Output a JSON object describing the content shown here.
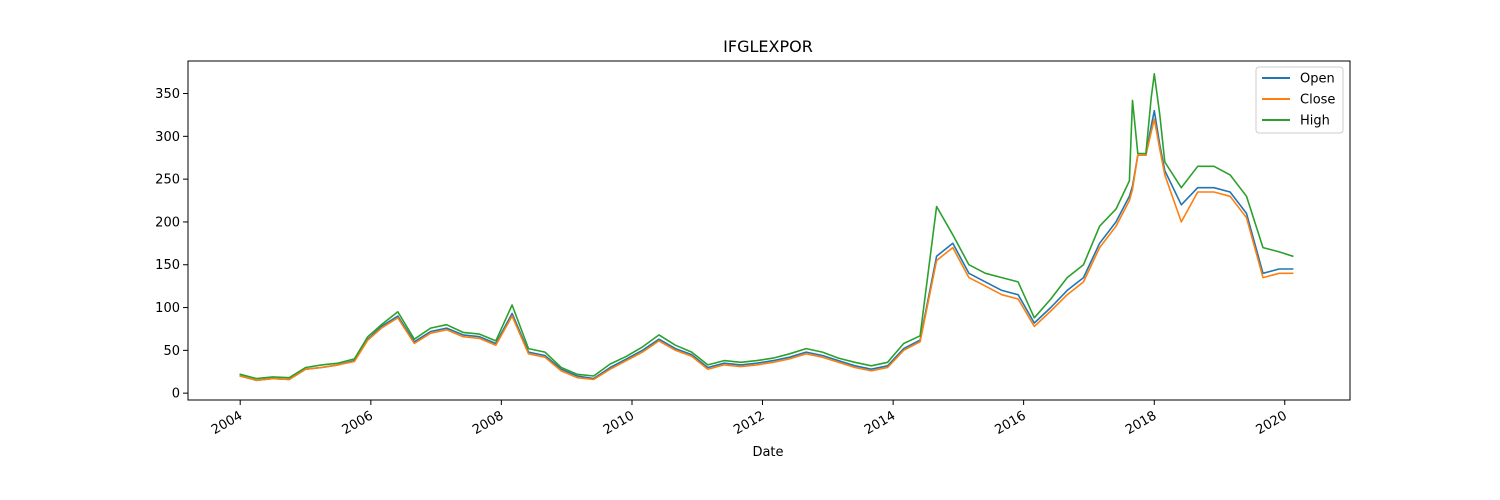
{
  "chart_data": {
    "type": "line",
    "title": "IFGLEXPOR",
    "xlabel": "Date",
    "ylabel": "",
    "x_ticks": [
      "2004",
      "2006",
      "2008",
      "2010",
      "2012",
      "2014",
      "2016",
      "2018",
      "2020"
    ],
    "y_ticks": [
      0,
      50,
      100,
      150,
      200,
      250,
      300,
      350
    ],
    "xlim": [
      "2003-03-15",
      "2020-12-31"
    ],
    "ylim": [
      -8,
      388
    ],
    "grid": false,
    "legend_position": "top-right",
    "x": [
      "2004-01-01",
      "2004-04-01",
      "2004-07-01",
      "2004-10-01",
      "2005-01-01",
      "2005-04-01",
      "2005-07-01",
      "2005-10-01",
      "2005-12-15",
      "2006-03-01",
      "2006-06-01",
      "2006-09-01",
      "2006-12-01",
      "2007-03-01",
      "2007-06-01",
      "2007-09-01",
      "2007-12-01",
      "2008-03-01",
      "2008-06-01",
      "2008-09-01",
      "2008-12-01",
      "2009-03-01",
      "2009-06-01",
      "2009-09-01",
      "2009-12-01",
      "2010-03-01",
      "2010-06-01",
      "2010-09-01",
      "2010-12-01",
      "2011-03-01",
      "2011-06-01",
      "2011-09-01",
      "2011-12-01",
      "2012-03-01",
      "2012-06-01",
      "2012-09-01",
      "2012-12-01",
      "2013-03-01",
      "2013-06-01",
      "2013-09-01",
      "2013-12-01",
      "2014-03-01",
      "2014-06-01",
      "2014-09-01",
      "2014-12-01",
      "2015-03-01",
      "2015-06-01",
      "2015-09-01",
      "2015-12-01",
      "2016-03-01",
      "2016-06-01",
      "2016-09-01",
      "2016-12-01",
      "2017-03-01",
      "2017-06-01",
      "2017-08-15",
      "2017-09-01",
      "2017-10-01",
      "2017-11-15",
      "2017-12-15",
      "2018-01-01",
      "2018-02-01",
      "2018-03-01",
      "2018-06-01",
      "2018-09-01",
      "2018-12-01",
      "2019-03-01",
      "2019-06-01",
      "2019-09-01",
      "2019-12-01",
      "2020-02-15"
    ],
    "series": [
      {
        "name": "Open",
        "color": "#1f77b4",
        "values": [
          20,
          15,
          17,
          16,
          28,
          30,
          33,
          38,
          63,
          78,
          90,
          60,
          72,
          76,
          68,
          66,
          58,
          93,
          48,
          44,
          28,
          20,
          17,
          30,
          40,
          50,
          63,
          52,
          45,
          30,
          35,
          33,
          35,
          38,
          42,
          48,
          44,
          38,
          32,
          28,
          32,
          52,
          62,
          160,
          175,
          140,
          130,
          120,
          115,
          82,
          100,
          120,
          135,
          175,
          200,
          230,
          242,
          278,
          278,
          312,
          330,
          290,
          260,
          220,
          240,
          240,
          235,
          210,
          140,
          145,
          145
        ]
      },
      {
        "name": "Close",
        "color": "#ff7f0e",
        "values": [
          20,
          15,
          17,
          16,
          28,
          30,
          33,
          37,
          62,
          76,
          88,
          58,
          70,
          74,
          66,
          64,
          56,
          90,
          46,
          42,
          26,
          18,
          16,
          28,
          38,
          48,
          61,
          50,
          43,
          28,
          33,
          31,
          33,
          36,
          40,
          46,
          42,
          36,
          30,
          26,
          30,
          50,
          60,
          155,
          170,
          135,
          125,
          115,
          110,
          78,
          96,
          115,
          130,
          170,
          195,
          225,
          238,
          278,
          278,
          305,
          320,
          285,
          255,
          200,
          235,
          235,
          230,
          205,
          135,
          140,
          140
        ]
      },
      {
        "name": "High",
        "color": "#2ca02c",
        "values": [
          22,
          17,
          19,
          18,
          30,
          33,
          35,
          40,
          66,
          80,
          95,
          63,
          76,
          80,
          71,
          69,
          61,
          103,
          52,
          48,
          30,
          22,
          20,
          34,
          43,
          54,
          68,
          56,
          48,
          33,
          38,
          36,
          38,
          41,
          46,
          52,
          48,
          41,
          36,
          32,
          36,
          58,
          67,
          218,
          185,
          150,
          140,
          135,
          130,
          88,
          110,
          135,
          150,
          195,
          215,
          248,
          342,
          280,
          280,
          345,
          373,
          325,
          270,
          240,
          265,
          265,
          255,
          230,
          170,
          165,
          160
        ]
      }
    ]
  }
}
